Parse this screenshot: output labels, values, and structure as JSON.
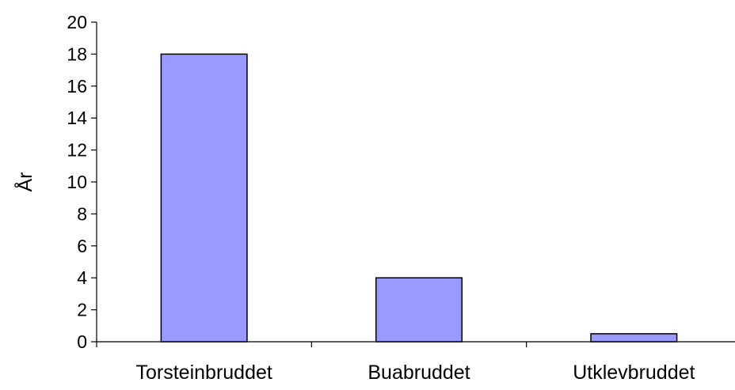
{
  "chart_data": {
    "type": "bar",
    "title": "",
    "xlabel": "",
    "ylabel": "År",
    "categories": [
      "Torsteinbruddet",
      "Buabruddet",
      "Utklevbruddet"
    ],
    "values": [
      18,
      4,
      0.5
    ],
    "ylim": [
      0,
      20
    ],
    "yticks": [
      "0",
      "2",
      "4",
      "6",
      "8",
      "10",
      "12",
      "14",
      "16",
      "18",
      "20"
    ],
    "grid": false,
    "legend": "none",
    "colors": {
      "bar_fill": "#9999ff",
      "bar_stroke": "#000000",
      "axis": "#000000",
      "background": "#ffffff"
    }
  }
}
